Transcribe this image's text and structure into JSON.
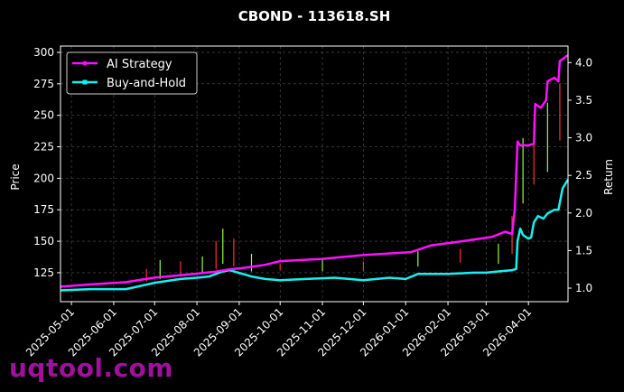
{
  "watermark": "uqtool.com",
  "colors": {
    "background": "#000000",
    "strategy": "#ff10ff",
    "buyhold": "#18f0f0",
    "candle_up": "#ff3030",
    "candle_down": "#90ff40",
    "grid": "#555555"
  },
  "chart_data": {
    "type": "line",
    "title": "CBOND - 113618.SH",
    "xlabel": "",
    "ylabel": "Price",
    "y2label": "Return",
    "grid": true,
    "legend_position": "upper-left",
    "x_range": [
      "2025-04-23",
      "2026-04-30"
    ],
    "ylim": [
      102,
      305
    ],
    "y2lim": [
      0.82,
      4.22
    ],
    "yticks": [
      125,
      150,
      175,
      200,
      225,
      250,
      275,
      300
    ],
    "y2ticks": [
      1.0,
      1.5,
      2.0,
      2.5,
      3.0,
      3.5,
      4.0
    ],
    "y2tick_labels": [
      "1.0",
      "1.5",
      "2.0",
      "2.5",
      "3.0",
      "3.5",
      "4.0"
    ],
    "xticks": [
      "2025-05-01",
      "2025-06-01",
      "2025-07-01",
      "2025-08-01",
      "2025-09-01",
      "2025-10-01",
      "2025-11-01",
      "2025-12-01",
      "2026-01-01",
      "2026-02-01",
      "2026-03-01",
      "2026-04-01"
    ],
    "series": [
      {
        "name": "AI Strategy",
        "axis": "right",
        "x": [
          "2025-04-23",
          "2025-05-15",
          "2025-06-10",
          "2025-07-01",
          "2025-07-25",
          "2025-08-15",
          "2025-08-25",
          "2025-09-05",
          "2025-09-20",
          "2025-10-01",
          "2025-11-01",
          "2025-12-01",
          "2026-01-05",
          "2026-01-20",
          "2026-02-10",
          "2026-03-05",
          "2026-03-15",
          "2026-03-20",
          "2026-03-22",
          "2026-03-24",
          "2026-03-26",
          "2026-04-01",
          "2026-04-05",
          "2026-04-06",
          "2026-04-10",
          "2026-04-14",
          "2026-04-15",
          "2026-04-20",
          "2026-04-23",
          "2026-04-24",
          "2026-04-30"
        ],
        "values": [
          1.02,
          1.05,
          1.08,
          1.14,
          1.18,
          1.22,
          1.25,
          1.27,
          1.31,
          1.36,
          1.39,
          1.44,
          1.48,
          1.57,
          1.62,
          1.68,
          1.75,
          1.72,
          2.05,
          2.95,
          2.9,
          2.9,
          2.92,
          3.45,
          3.4,
          3.5,
          3.75,
          3.8,
          3.75,
          4.02,
          4.1
        ]
      },
      {
        "name": "Buy-and-Hold",
        "axis": "left",
        "x": [
          "2025-04-23",
          "2025-05-15",
          "2025-06-10",
          "2025-07-01",
          "2025-07-20",
          "2025-08-01",
          "2025-08-10",
          "2025-08-20",
          "2025-08-25",
          "2025-09-10",
          "2025-09-20",
          "2025-10-01",
          "2025-10-20",
          "2025-11-10",
          "2025-12-01",
          "2025-12-20",
          "2026-01-01",
          "2026-01-10",
          "2026-02-01",
          "2026-02-20",
          "2026-03-01",
          "2026-03-10",
          "2026-03-20",
          "2026-03-23",
          "2026-03-24",
          "2026-03-26",
          "2026-03-28",
          "2026-04-01",
          "2026-04-03",
          "2026-04-05",
          "2026-04-08",
          "2026-04-12",
          "2026-04-15",
          "2026-04-20",
          "2026-04-23",
          "2026-04-26",
          "2026-04-30"
        ],
        "values": [
          111,
          112,
          112,
          117,
          120,
          121,
          122,
          126,
          127,
          122,
          120,
          119,
          120,
          121,
          119,
          121,
          120,
          124,
          124,
          125,
          125,
          126,
          127,
          128,
          150,
          160,
          155,
          152,
          153,
          165,
          170,
          168,
          172,
          175,
          175,
          192,
          199
        ]
      }
    ],
    "ohlc_note": "candlestick price bars drawn behind lines, left axis",
    "candles": [
      {
        "date": "2025-06-25",
        "low": 118,
        "high": 128
      },
      {
        "date": "2025-07-05",
        "low": 120,
        "high": 135
      },
      {
        "date": "2025-07-20",
        "low": 122,
        "high": 134
      },
      {
        "date": "2025-08-05",
        "low": 124,
        "high": 138
      },
      {
        "date": "2025-08-15",
        "low": 128,
        "high": 150
      },
      {
        "date": "2025-08-20",
        "low": 132,
        "high": 160
      },
      {
        "date": "2025-08-28",
        "low": 130,
        "high": 152
      },
      {
        "date": "2025-09-10",
        "low": 126,
        "high": 140
      },
      {
        "date": "2025-10-01",
        "low": 127,
        "high": 132
      },
      {
        "date": "2025-11-01",
        "low": 126,
        "high": 136
      },
      {
        "date": "2025-12-01",
        "low": 126,
        "high": 134
      },
      {
        "date": "2026-01-10",
        "low": 130,
        "high": 142
      },
      {
        "date": "2026-02-10",
        "low": 133,
        "high": 144
      },
      {
        "date": "2026-03-10",
        "low": 132,
        "high": 148
      },
      {
        "date": "2026-03-20",
        "low": 140,
        "high": 170
      },
      {
        "date": "2026-03-28",
        "low": 180,
        "high": 232
      },
      {
        "date": "2026-04-05",
        "low": 195,
        "high": 245
      },
      {
        "date": "2026-04-15",
        "low": 205,
        "high": 260
      },
      {
        "date": "2026-04-24",
        "low": 230,
        "high": 275
      }
    ]
  }
}
